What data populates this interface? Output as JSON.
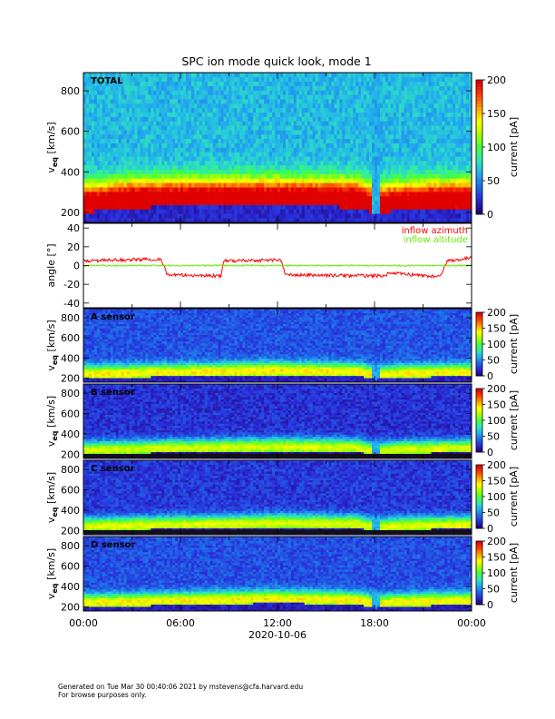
{
  "title": "SPC ion mode quick look, mode 1",
  "footer": {
    "line1": "Generated on Tue Mar 30 00:40:06 2021 by mstevens@cfa.harvard.edu",
    "line2": "For browse purposes only."
  },
  "time_axis": {
    "tick_labels": [
      "00:00",
      "06:00",
      "12:00",
      "18:00",
      "00:00"
    ],
    "date_label": "2020-10-06"
  },
  "colors": {
    "azimuth": "#ff0000",
    "altitude": "#66ee00",
    "colormap": [
      "#200070",
      "#2a2ad8",
      "#1e6ae8",
      "#22b0ee",
      "#2ee8b8",
      "#40ff40",
      "#a8ff00",
      "#ffff00",
      "#ffa000",
      "#ff4000",
      "#e00000"
    ]
  },
  "chart_data": [
    {
      "type": "heatmap",
      "panel": "total",
      "label": "TOTAL",
      "ylabel": "v_eq [km/s]",
      "ylim": [
        150,
        890
      ],
      "y_ticks": [
        200,
        400,
        600,
        800
      ],
      "colorbar": {
        "label": "current [pA]",
        "range": [
          0,
          200
        ],
        "ticks": [
          0,
          50,
          100,
          150,
          200
        ]
      },
      "core_speed_kms": [
        [
          0,
          240
        ],
        [
          2,
          255
        ],
        [
          3,
          265
        ],
        [
          6,
          268
        ],
        [
          10,
          270
        ],
        [
          14,
          268
        ],
        [
          17,
          265
        ],
        [
          18,
          230
        ],
        [
          19,
          245
        ],
        [
          21,
          255
        ],
        [
          24,
          265
        ]
      ]
    },
    {
      "type": "line",
      "panel": "angle",
      "ylabel": "angle [°]",
      "ylim": [
        -45,
        45
      ],
      "y_ticks": [
        -40,
        -20,
        0,
        20,
        40
      ],
      "series": [
        {
          "name": "inflow azimuth",
          "x": [
            0,
            4.8,
            5.2,
            8.5,
            8.7,
            12.2,
            12.5,
            18.5,
            19.0,
            22.0,
            22.5,
            24.0
          ],
          "y": [
            5,
            7,
            -10,
            -11,
            5,
            6,
            -10,
            -11,
            -8,
            -12,
            5,
            8
          ]
        },
        {
          "name": "inflow altitude",
          "x": [
            0,
            24
          ],
          "y": [
            0,
            0
          ]
        }
      ]
    },
    {
      "type": "heatmap",
      "panel": "A",
      "label": "A sensor",
      "ylabel": "v_eq [km/s]",
      "ylim": [
        160,
        890
      ],
      "y_ticks": [
        200,
        400,
        600,
        800
      ],
      "colorbar": {
        "label": "current [pA]",
        "range": [
          0,
          200
        ],
        "ticks": [
          0,
          50,
          100,
          150,
          200
        ]
      },
      "core_speed_kms": [
        [
          0,
          240
        ],
        [
          6,
          260
        ],
        [
          12,
          275
        ],
        [
          17,
          265
        ],
        [
          18,
          230
        ],
        [
          20,
          250
        ],
        [
          24,
          260
        ]
      ]
    },
    {
      "type": "heatmap",
      "panel": "B",
      "label": "B sensor",
      "ylabel": "v_eq [km/s]",
      "ylim": [
        160,
        890
      ],
      "y_ticks": [
        200,
        400,
        600,
        800
      ],
      "colorbar": {
        "label": "current [pA]",
        "range": [
          0,
          200
        ],
        "ticks": [
          0,
          50,
          100,
          150,
          200
        ]
      },
      "core_speed_kms": [
        [
          0,
          240
        ],
        [
          6,
          260
        ],
        [
          12,
          275
        ],
        [
          17,
          265
        ],
        [
          18,
          230
        ],
        [
          20,
          250
        ],
        [
          24,
          260
        ]
      ]
    },
    {
      "type": "heatmap",
      "panel": "C",
      "label": "C sensor",
      "ylabel": "v_eq [km/s]",
      "ylim": [
        160,
        890
      ],
      "y_ticks": [
        200,
        400,
        600,
        800
      ],
      "colorbar": {
        "label": "current [pA]",
        "range": [
          0,
          200
        ],
        "ticks": [
          0,
          50,
          100,
          150,
          200
        ]
      },
      "core_speed_kms": [
        [
          0,
          240
        ],
        [
          6,
          260
        ],
        [
          12,
          275
        ],
        [
          17,
          265
        ],
        [
          18,
          230
        ],
        [
          20,
          250
        ],
        [
          24,
          260
        ]
      ]
    },
    {
      "type": "heatmap",
      "panel": "D",
      "label": "D sensor",
      "ylabel": "v_eq [km/s]",
      "ylim": [
        160,
        890
      ],
      "y_ticks": [
        200,
        400,
        600,
        800
      ],
      "colorbar": {
        "label": "current [pA]",
        "range": [
          0,
          200
        ],
        "ticks": [
          0,
          50,
          100,
          150,
          200
        ]
      },
      "core_speed_kms": [
        [
          0,
          240
        ],
        [
          6,
          260
        ],
        [
          12,
          280
        ],
        [
          17,
          265
        ],
        [
          18,
          230
        ],
        [
          20,
          250
        ],
        [
          24,
          260
        ]
      ]
    }
  ]
}
